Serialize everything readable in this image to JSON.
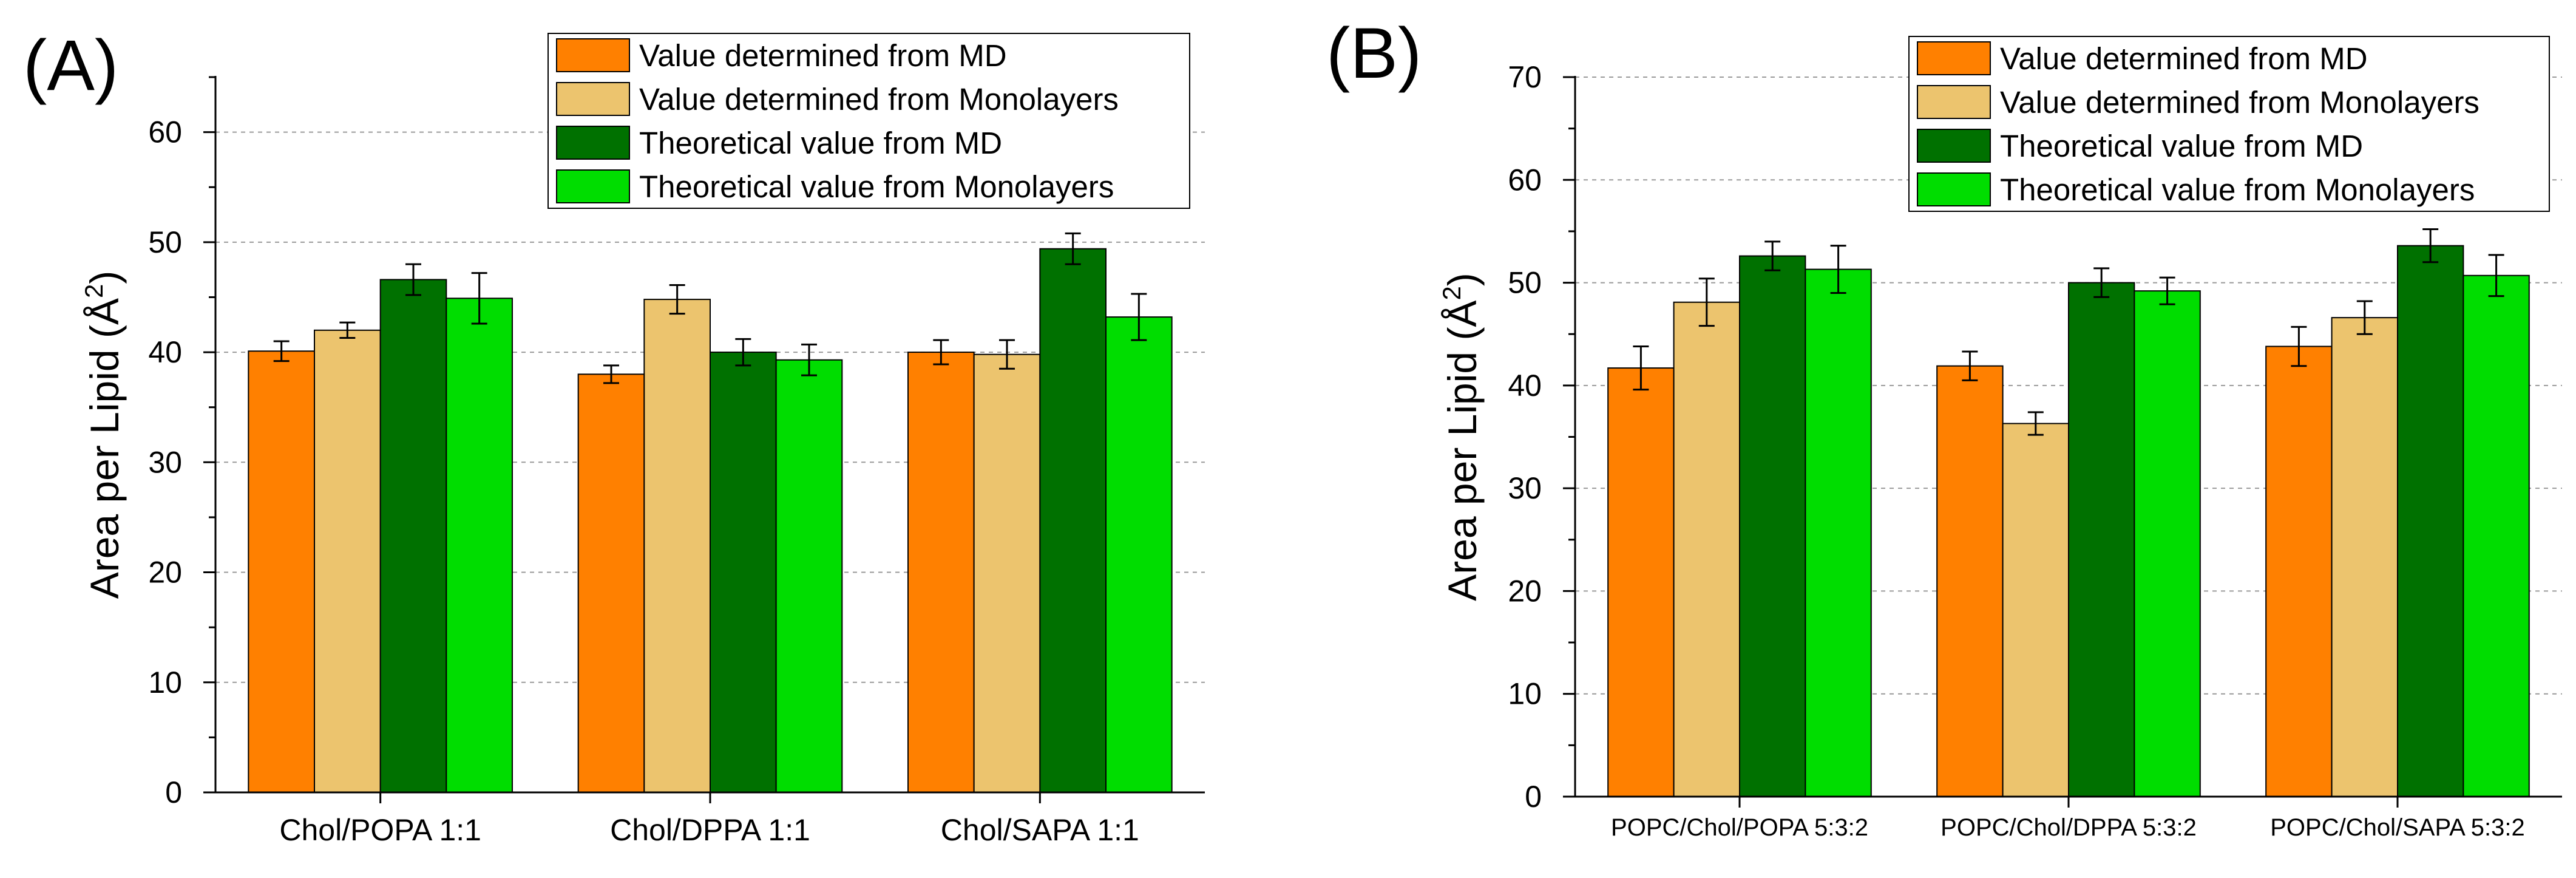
{
  "colors": {
    "md_value": "#FF8000",
    "mono_value": "#ECC46E",
    "md_theory": "#007100",
    "mono_theory": "#00DD00"
  },
  "chart_data": [
    {
      "type": "bar",
      "panel_label": "(A)",
      "title": "",
      "xlabel": "",
      "ylabel": "Area per Lipid (Å",
      "ylabel_sup": "2",
      "ylabel_close": ")",
      "ylim": [
        0,
        65
      ],
      "yticks": [
        0,
        10,
        20,
        30,
        40,
        50,
        60
      ],
      "grid": "horizontal dashed",
      "legend_position": "top-right",
      "categories": [
        "Chol/POPA 1:1",
        "Chol/DPPA 1:1",
        "Chol/SAPA 1:1"
      ],
      "series": [
        {
          "name": "Value determined from MD",
          "color_key": "md_value",
          "values": [
            40.1,
            38.0,
            40.0
          ],
          "errors": [
            0.9,
            0.8,
            1.1
          ]
        },
        {
          "name": "Value determined from Monolayers",
          "color_key": "mono_value",
          "values": [
            42.0,
            44.8,
            39.8
          ],
          "errors": [
            0.7,
            1.3,
            1.3
          ]
        },
        {
          "name": "Theoretical value from MD",
          "color_key": "md_theory",
          "values": [
            46.6,
            40.0,
            49.4
          ],
          "errors": [
            1.4,
            1.2,
            1.4
          ]
        },
        {
          "name": "Theoretical value from Monolayers",
          "color_key": "mono_theory",
          "values": [
            44.9,
            39.3,
            43.2
          ],
          "errors": [
            2.3,
            1.4,
            2.1
          ]
        }
      ]
    },
    {
      "type": "bar",
      "panel_label": "(B)",
      "title": "",
      "xlabel": "",
      "ylabel": "Area per Lipid (Å",
      "ylabel_sup": "2",
      "ylabel_close": ")",
      "ylim": [
        0,
        70
      ],
      "yticks": [
        0,
        10,
        20,
        30,
        40,
        50,
        60,
        70
      ],
      "grid": "horizontal dashed",
      "legend_position": "top-right",
      "categories": [
        "POPC/Chol/POPA 5:3:2",
        "POPC/Chol/DPPA 5:3:2",
        "POPC/Chol/SAPA 5:3:2"
      ],
      "series": [
        {
          "name": "Value determined from MD",
          "color_key": "md_value",
          "values": [
            41.7,
            41.9,
            43.8
          ],
          "errors": [
            2.1,
            1.4,
            1.9
          ]
        },
        {
          "name": "Value determined from Monolayers",
          "color_key": "mono_value",
          "values": [
            48.1,
            36.3,
            46.6
          ],
          "errors": [
            2.3,
            1.1,
            1.6
          ]
        },
        {
          "name": "Theoretical value from MD",
          "color_key": "md_theory",
          "values": [
            52.6,
            50.0,
            53.6
          ],
          "errors": [
            1.4,
            1.4,
            1.6
          ]
        },
        {
          "name": "Theoretical value from Monolayers",
          "color_key": "mono_theory",
          "values": [
            51.3,
            49.2,
            50.7
          ],
          "errors": [
            2.3,
            1.3,
            2.0
          ]
        }
      ]
    }
  ]
}
